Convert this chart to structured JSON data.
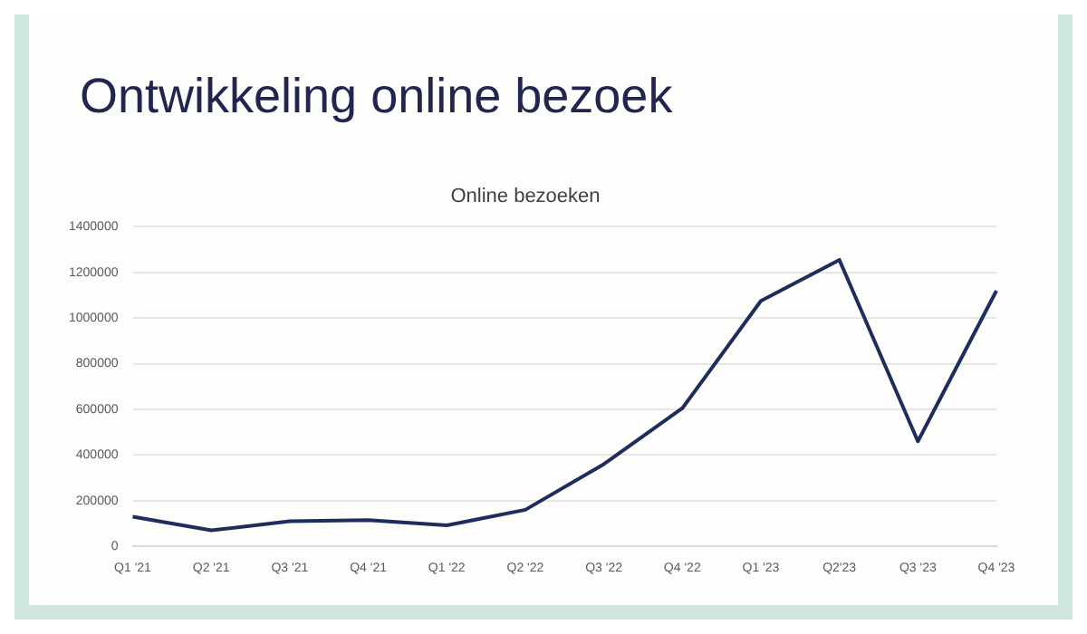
{
  "chart_data": {
    "type": "line",
    "title": "Ontwikkeling online bezoek",
    "subtitle": "Online bezoeken",
    "categories": [
      "Q1 '21",
      "Q2 '21",
      "Q3 '21",
      "Q4 '21",
      "Q1 '22",
      "Q2 '22",
      "Q3 '22",
      "Q4 '22",
      "Q1 '23",
      "Q2'23",
      "Q3 '23",
      "Q4 '23"
    ],
    "series": [
      {
        "color": "#1f2d5c",
        "values": [
          130000,
          70000,
          110000,
          115000,
          92000,
          160000,
          360000,
          605000,
          1075000,
          1255000,
          460000,
          1120000
        ]
      }
    ],
    "ylim": [
      0,
      1400000
    ],
    "yticks": [
      0,
      200000,
      400000,
      600000,
      800000,
      1000000,
      1200000,
      1400000
    ],
    "grid": "y",
    "legend": false,
    "marker": "none",
    "line_style": "solid"
  }
}
